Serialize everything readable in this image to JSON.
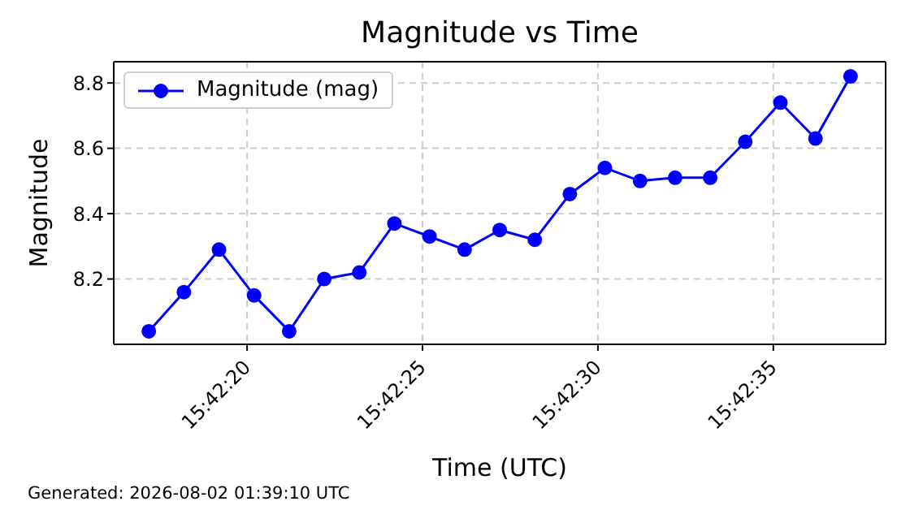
{
  "chart_data": {
    "type": "line",
    "title": "Magnitude vs Time",
    "xlabel": "Time (UTC)",
    "ylabel": "Magnitude",
    "x": [
      15.7047778,
      15.7050556,
      15.7053333,
      15.7056111,
      15.7058889,
      15.7061667,
      15.7064444,
      15.7067222,
      15.707,
      15.7072778,
      15.7075556,
      15.7078333,
      15.7081111,
      15.7083889,
      15.7086667,
      15.7089444,
      15.7092222,
      15.7095,
      15.7097778,
      15.7100556,
      15.7103333
    ],
    "series": [
      {
        "name": "Magnitude (mag)",
        "color": "#0000ff",
        "values": [
          8.04,
          8.16,
          8.29,
          8.15,
          8.04,
          8.2,
          8.22,
          8.37,
          8.33,
          8.29,
          8.35,
          8.32,
          8.46,
          8.54,
          8.5,
          8.51,
          8.51,
          8.62,
          8.74,
          8.63,
          8.82
        ]
      }
    ],
    "xlim": [
      15.7045,
      15.7106111
    ],
    "xticks": [
      {
        "value": 15.7055556,
        "label": "15:42:20"
      },
      {
        "value": 15.7069444,
        "label": "15:42:25"
      },
      {
        "value": 15.7083333,
        "label": "15:42:30"
      },
      {
        "value": 15.7097222,
        "label": "15:42:35"
      }
    ],
    "ylim": [
      8.0,
      8.865
    ],
    "yticks": [
      8.2,
      8.4,
      8.6,
      8.8
    ],
    "grid": true,
    "legend": "top left",
    "marker": "circle",
    "line_style": "solid",
    "annotations": [
      "Generated: 2026-08-02 01:39:10 UTC"
    ]
  }
}
